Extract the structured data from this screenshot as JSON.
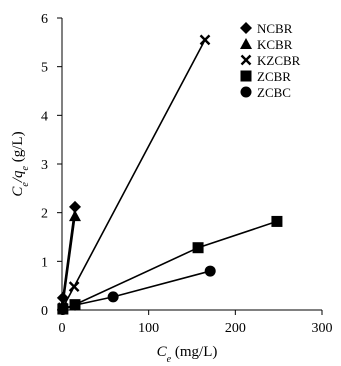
{
  "chart_data": {
    "type": "scatter",
    "xlabel_parts": [
      {
        "text": "C",
        "style": "italic"
      },
      {
        "text": "e",
        "style": "italic-sub"
      },
      {
        "text": " (mg/L)",
        "style": "normal"
      }
    ],
    "ylabel_parts": [
      {
        "text": "C",
        "style": "italic"
      },
      {
        "text": "e",
        "style": "italic-sub"
      },
      {
        "text": "/",
        "style": "italic"
      },
      {
        "text": "q",
        "style": "italic"
      },
      {
        "text": "e",
        "style": "italic-sub"
      },
      {
        "text": " (g/L)",
        "style": "normal"
      }
    ],
    "xlim": [
      0,
      300
    ],
    "ylim": [
      0,
      6
    ],
    "x_ticks": [
      0,
      100,
      200,
      300
    ],
    "y_ticks": [
      0,
      1,
      2,
      3,
      4,
      5,
      6
    ],
    "grid": false,
    "legend_position": "top-right",
    "series": [
      {
        "name": "NCBR",
        "marker": "diamond",
        "points": [
          [
            1,
            0.25
          ],
          [
            15,
            2.12
          ]
        ]
      },
      {
        "name": "KCBR",
        "marker": "triangle",
        "points": [
          [
            1,
            0.1
          ],
          [
            15,
            1.93
          ]
        ]
      },
      {
        "name": "KZCBR",
        "marker": "x",
        "points": [
          [
            1,
            0.05
          ],
          [
            14,
            0.48
          ],
          [
            165,
            5.55
          ]
        ]
      },
      {
        "name": "ZCBR",
        "marker": "square",
        "points": [
          [
            1,
            0.02
          ],
          [
            15,
            0.11
          ],
          [
            157,
            1.28
          ],
          [
            248,
            1.82
          ]
        ]
      },
      {
        "name": "ZCBC",
        "marker": "circle",
        "points": [
          [
            1,
            0.01
          ],
          [
            15,
            0.1
          ],
          [
            59,
            0.27
          ],
          [
            171,
            0.8
          ]
        ]
      }
    ]
  }
}
